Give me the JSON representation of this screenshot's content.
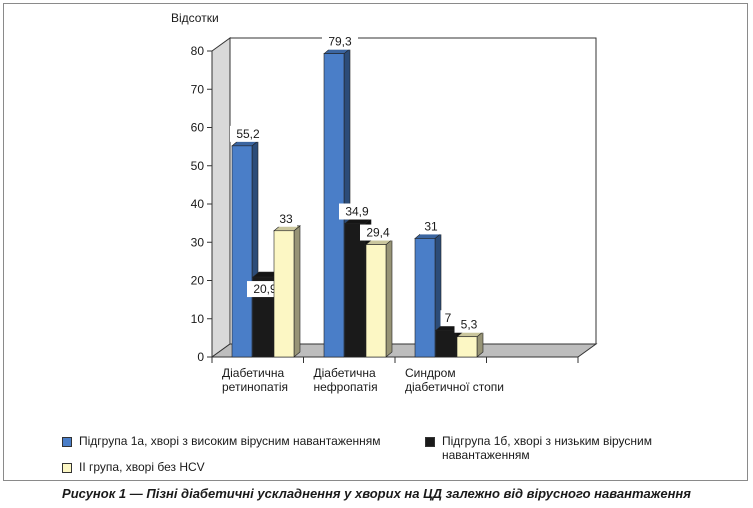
{
  "chart_data": {
    "type": "bar",
    "ylabel": "Відсотки",
    "ylim": [
      0,
      80
    ],
    "yticks": [
      "0",
      "10",
      "20",
      "30",
      "40",
      "50",
      "60",
      "70",
      "80"
    ],
    "categories": [
      [
        "Діабетична",
        "ретинопатія"
      ],
      [
        "Діабетична",
        "нефропатія"
      ],
      [
        "Синдром",
        "діабетичної стопи"
      ]
    ],
    "series": [
      {
        "name": "Підгрупа 1а, хворі з високим вірусним навантаженням",
        "color": "#4a7ec8",
        "values": [
          55.2,
          79.3,
          31
        ],
        "labels": [
          "55,2",
          "79,3",
          "31"
        ]
      },
      {
        "name": "Підгрупа 1б, хворі з низьким вірусним навантаженням",
        "color": "#1a1a1a",
        "values": [
          20.9,
          34.9,
          7
        ],
        "labels": [
          "20,9",
          "34,9",
          "7"
        ]
      },
      {
        "name": "II група, хворі без HCV",
        "color": "#fcf7c4",
        "values": [
          33,
          29.4,
          5.3
        ],
        "labels": [
          "33",
          "29,4",
          "5,3"
        ]
      }
    ],
    "grid": false,
    "style": "3d"
  },
  "caption": "Рисунок 1 — Пізні діабетичні ускладнення у хворих на ЦД залежно від вірусного навантаження"
}
